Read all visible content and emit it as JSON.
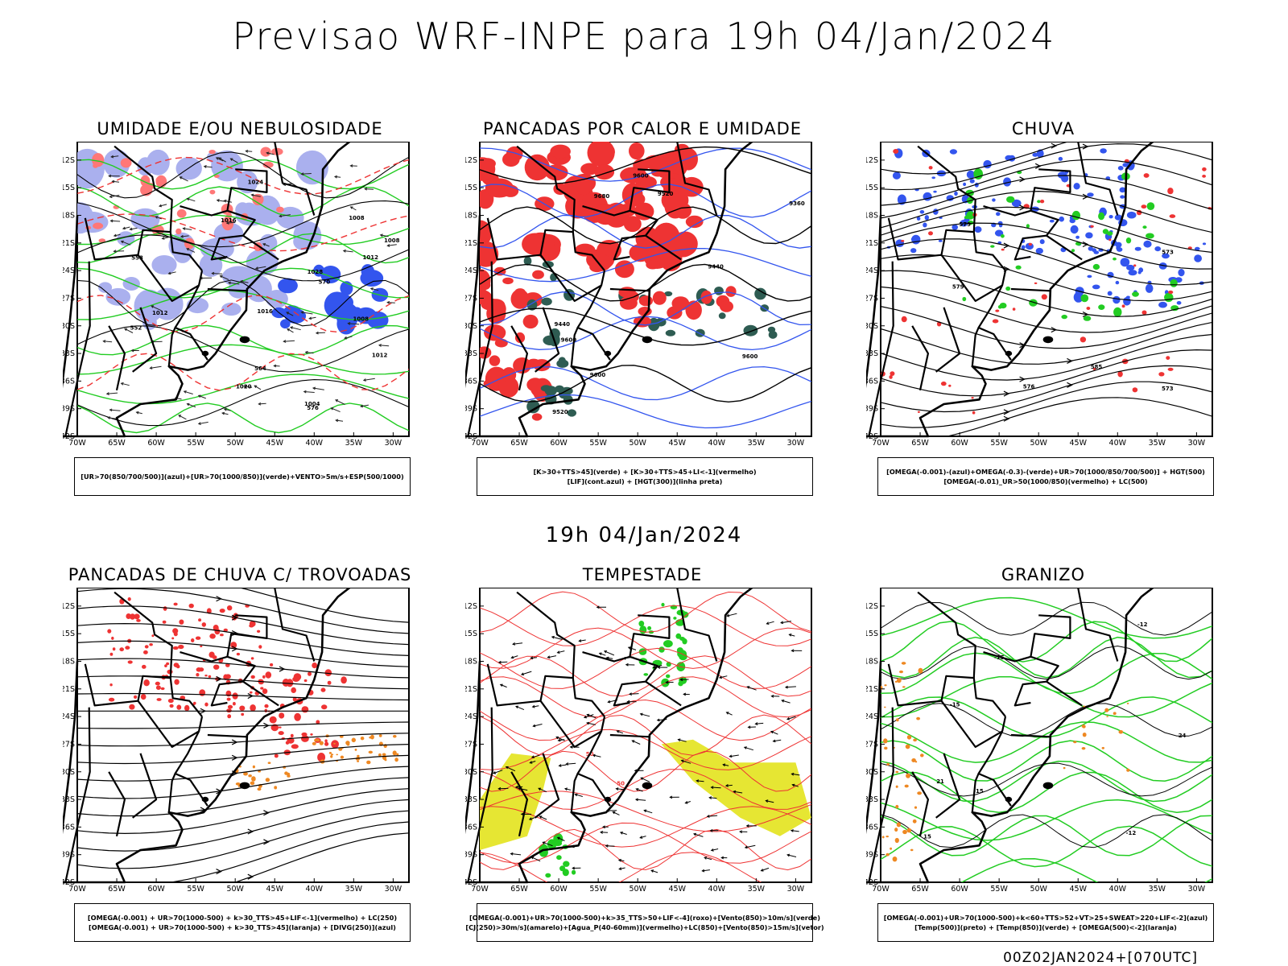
{
  "header": {
    "title": "Previsao WRF-INPE  para 19h 04/Jan/2024"
  },
  "middle": {
    "title": "19h 04/Jan/2024"
  },
  "footer": {
    "stamp": "00Z02JAN2024+[070UTC]"
  },
  "axes": {
    "lat_labels": [
      "12S",
      "15S",
      "18S",
      "21S",
      "24S",
      "27S",
      "30S",
      "33S",
      "36S",
      "39S",
      "42S"
    ],
    "lon_labels": [
      "70W",
      "65W",
      "60W",
      "55W",
      "50W",
      "45W",
      "40W",
      "35W",
      "30W"
    ]
  },
  "colors": {
    "blue": "#3355ee",
    "lightblue": "#aab0ee",
    "green": "#22cc22",
    "red": "#ee3333",
    "orange": "#ee8822",
    "yellow": "#e6e633",
    "teal": "#2e5c52",
    "black": "#000000"
  },
  "panels": [
    {
      "id": "umidade",
      "title": "UMIDADE E/OU NEBULOSIDADE",
      "legend": [
        "[UR>70(850/700/500)](azul)+[UR>70(1000/850)](verde)+VENTO>5m/s+ESP(500/1000)"
      ],
      "contour_labels": [
        "1012",
        "1008",
        "1008",
        "1012",
        "1016",
        "1004",
        "1008",
        "1012",
        "1016",
        "1020",
        "1024",
        "1028",
        "570",
        "576",
        "564",
        "558",
        "552"
      ]
    },
    {
      "id": "pancadas-calor",
      "title": "PANCADAS POR CALOR E UMIDADE",
      "legend": [
        "[K>30+TTS>45](verde) + [K>30+TTS>45+LI<-1](vermelho)",
        "[LIF](cont.azul) + [HGT(300)](linha preta)"
      ],
      "contour_labels": [
        "9680",
        "9600",
        "9600",
        "9520",
        "9600",
        "9520",
        "9440",
        "9440",
        "9360",
        "9600"
      ]
    },
    {
      "id": "chuva",
      "title": "CHUVA",
      "legend": [
        "[OMEGA(-0.001)-(azul)+OMEGA(-0.3)-(verde)+UR>70(1000/850/700/500)] + HGT(500)",
        "[OMEGA(-0.01)_UR>50(1000/850)(vermelho) + LC(500)"
      ],
      "contour_labels": [
        "585",
        "579",
        "573",
        "576",
        "573",
        "579"
      ]
    },
    {
      "id": "pancadas-trovoadas",
      "title": "PANCADAS DE CHUVA C/ TROVOADAS",
      "legend": [
        "[OMEGA(-0.001) + UR>70(1000-500) + k>30_TTS>45+LIF<-1](vermelho) + LC(250)",
        "[OMEGA(-0.001) + UR>70(1000-500) + k>30_TTS>45](laranja) + [DIVG(250)](azul)"
      ],
      "contour_labels": []
    },
    {
      "id": "tempestade",
      "title": "TEMPESTADE",
      "legend": [
        "[OMEGA(-0.001)+UR>70(1000-500)+k>35_TTS>50+LIF<-4](roxo)+[Vento(850)>10m/s](verde)",
        "[CJ(250)>30m/s](amarelo)+[Agua_P(40-60mm)](vermelho)+LC(850)+[Vento(850)>15m/s](vetor)"
      ],
      "contour_labels": [
        "50",
        "50"
      ]
    },
    {
      "id": "granizo",
      "title": "GRANIZO",
      "legend": [
        "[OMEGA(-0.001)+UR>70(1000-500)+k<60+TTS>52+VT>25+SWEAT>220+LIF<-2](azul)",
        "[Temp(500)](preto) + [Temp(850)](verde) + [OMEGA(500)<-2](laranja)"
      ],
      "contour_labels": [
        "-12",
        "-15",
        "-15",
        "-12",
        "-15",
        "21",
        "24",
        "15"
      ]
    }
  ]
}
